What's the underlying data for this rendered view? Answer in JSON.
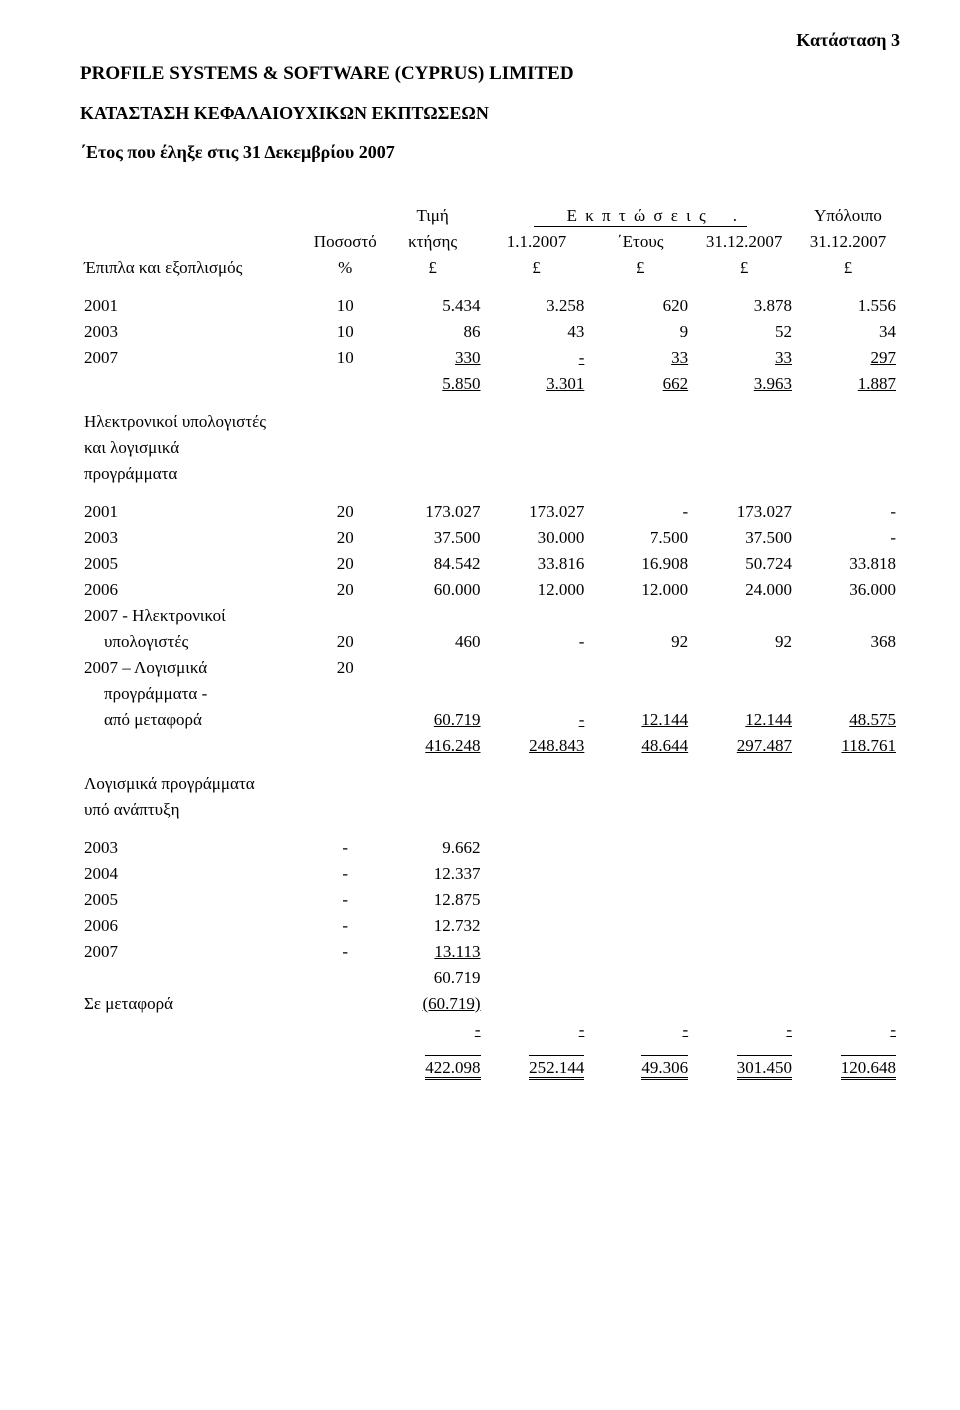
{
  "header": {
    "statement_no": "Κατάσταση 3",
    "company": "PROFILE SYSTEMS & SOFTWARE (CYPRUS) LIMITED",
    "subtitle": "ΚΑΤΑΣΤΑΣΗ ΚΕΦΑΛΑΙΟΥΧΙΚΩΝ ΕΚΠΤΩΣΕΩΝ",
    "period": "΄Ετος που έληξε στις 31 Δεκεμβρίου 2007"
  },
  "col_headers": {
    "pct_l1": "Ποσοστό",
    "pct_l2": "%",
    "cost_l1": "Τιμή",
    "cost_l2": "κτήσης",
    "cost_l3": "£",
    "dep_heading": "Ε κ π τ ώ σ ε ι ς",
    "d1_l1": "1.1.2007",
    "d1_l2": "£",
    "d2_l1": "΄Ετους",
    "d2_l2": "£",
    "d3_l1": "31.12.2007",
    "d3_l2": "£",
    "res_l1": "Υπόλοιπο",
    "res_l2": "31.12.2007",
    "res_l3": "£"
  },
  "section1": {
    "title": "Έπιπλα και εξοπλισμός",
    "rows": [
      {
        "y": "2001",
        "p": "10",
        "c": "5.434",
        "d1": "3.258",
        "d2": "620",
        "d3": "3.878",
        "r": "1.556"
      },
      {
        "y": "2003",
        "p": "10",
        "c": "86",
        "d1": "43",
        "d2": "9",
        "d3": "52",
        "r": "34"
      },
      {
        "y": "2007",
        "p": "10",
        "c": "330",
        "d1": "-",
        "d2": "33",
        "d3": "33",
        "r": "297",
        "ul": true
      }
    ],
    "total": {
      "c": "5.850",
      "d1": "3.301",
      "d2": "662",
      "d3": "3.963",
      "r": "1.887"
    }
  },
  "section2": {
    "title_l1": "Ηλεκτρονικοί υπολογιστές",
    "title_l2": "και λογισμικά",
    "title_l3": "προγράμματα",
    "rows": [
      {
        "y": "2001",
        "p": "20",
        "c": "173.027",
        "d1": "173.027",
        "d2": "-",
        "d3": "173.027",
        "r": "-"
      },
      {
        "y": "2003",
        "p": "20",
        "c": "37.500",
        "d1": "30.000",
        "d2": "7.500",
        "d3": "37.500",
        "r": "-"
      },
      {
        "y": "2005",
        "p": "20",
        "c": "84.542",
        "d1": "33.816",
        "d2": "16.908",
        "d3": "50.724",
        "r": "33.818"
      },
      {
        "y": "2006",
        "p": "20",
        "c": "60.000",
        "d1": "12.000",
        "d2": "12.000",
        "d3": "24.000",
        "r": "36.000"
      }
    ],
    "row_computers": {
      "y_l1": "2007 - Ηλεκτρονικοί",
      "y_l2": "υπολογιστές",
      "p": "20",
      "c": "460",
      "d1": "-",
      "d2": "92",
      "d3": "92",
      "r": "368"
    },
    "row_software": {
      "y_l1": "2007 – Λογισμικά",
      "y_l2": "προγράμματα -",
      "y_l3": "από μεταφορά",
      "p": "20",
      "c": "60.719",
      "d1": "-",
      "d2": "12.144",
      "d3": "12.144",
      "r": "48.575"
    },
    "total": {
      "c": "416.248",
      "d1": "248.843",
      "d2": "48.644",
      "d3": "297.487",
      "r": "118.761"
    }
  },
  "section3": {
    "title_l1": "Λογισμικά προγράμματα",
    "title_l2": "υπό ανάπτυξη",
    "rows": [
      {
        "y": "2003",
        "p": "-",
        "c": "9.662"
      },
      {
        "y": "2004",
        "p": "-",
        "c": "12.337"
      },
      {
        "y": "2005",
        "p": "-",
        "c": "12.875"
      },
      {
        "y": "2006",
        "p": "-",
        "c": "12.732"
      },
      {
        "y": "2007",
        "p": "-",
        "c": "13.113",
        "ul": true
      }
    ],
    "subtotal": {
      "c": "60.719"
    },
    "transfer_label": "Σε μεταφορά",
    "transfer": {
      "c": "(60.719)"
    },
    "zero_row": {
      "c": "-",
      "d1": "-",
      "d2": "-",
      "d3": "-",
      "r": "-"
    }
  },
  "grand_total": {
    "c": "422.098",
    "d1": "252.144",
    "d2": "49.306",
    "d3": "301.450",
    "r": "120.648"
  }
}
